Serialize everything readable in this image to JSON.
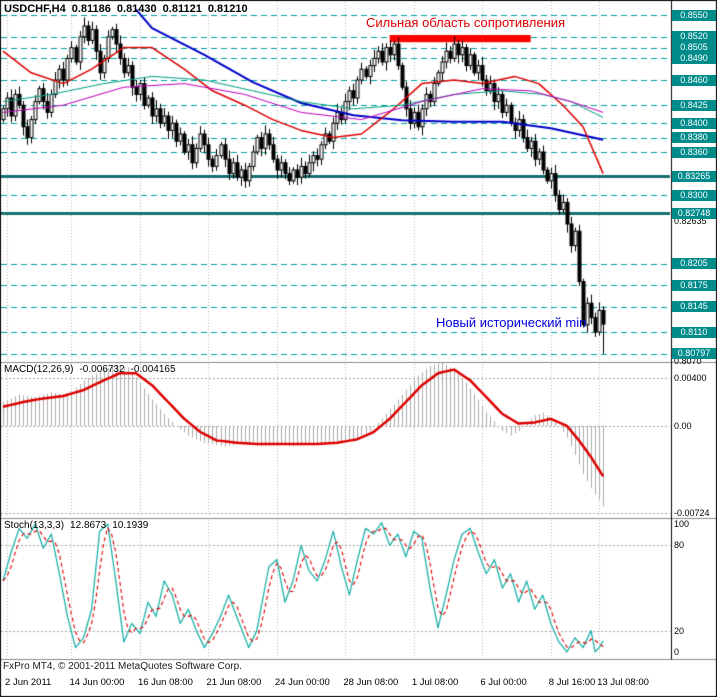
{
  "header": {
    "symbol": "USDCHF,H4",
    "open": "0.81186",
    "high": "0.81430",
    "low": "0.81121",
    "close": "0.81210"
  },
  "annotations": {
    "resistance_text": "Сильная область сопротивления",
    "min_text": "Новый исторический min"
  },
  "footer": {
    "copyright": "FxPro MT4, © 2001-2011 MetaQuotes Software Corp."
  },
  "indicators": {
    "macd": {
      "label": "MACD(12,26,9)",
      "value1": "-0.006732",
      "value2": "-0.004165",
      "scale": [
        "0.00400",
        "0.00",
        "-0.00724"
      ]
    },
    "stoch": {
      "label": "Stoch(13,3,3)",
      "value1": "12.8673",
      "value2": "10.1939",
      "scale": [
        "100",
        "80",
        "20",
        "0"
      ]
    }
  },
  "time_axis": {
    "labels": [
      {
        "bar": 1,
        "label": "2 Jun 2011"
      },
      {
        "bar": 17,
        "label": "14 Jun 00:00"
      },
      {
        "bar": 34,
        "label": "16 Jun 08:00"
      },
      {
        "bar": 51,
        "label": "21 Jun 08:00"
      },
      {
        "bar": 68,
        "label": "24 Jun 00:00"
      },
      {
        "bar": 85,
        "label": "28 Jun 08:00"
      },
      {
        "bar": 102,
        "label": "1 Jul 08:00"
      },
      {
        "bar": 119,
        "label": "6 Jul 00:00"
      },
      {
        "bar": 136,
        "label": "8 Jul 16:00"
      },
      {
        "bar": 148,
        "label": "13 Jul 08:00"
      }
    ]
  },
  "colors": {
    "background": "#FFFFFF",
    "border": "#000000",
    "grid": "#BDBDBD",
    "separator": "#8A8A8A",
    "level_line": "#00A0A0",
    "level_thick": "#176F6F",
    "level_box": "#008B8B",
    "bull": "#FFFFFF",
    "bear": "#000000",
    "candle_outline": "#000000",
    "ma_red": "#DD0000",
    "ma_blue": "#0000C8",
    "ma_teal": "#00A080",
    "ma_magenta": "#C000C0",
    "macd_hist": "#ABABAB",
    "macd_signal": "#DD0000",
    "stoch_main": "#20B2AA",
    "stoch_signal": "#DD0000",
    "resistance_bar": "#FF0000",
    "annotation_red": "#E00000",
    "annotation_blue": "#0000E0",
    "axis_text": "#000000"
  },
  "chart_data": [
    {
      "type": "candlestick",
      "title": "USDCHF H4",
      "y_range": [
        0.807,
        0.856
      ],
      "pip_factor": 0.0001,
      "historic_min": 0.80797,
      "closes_pips": [
        8420,
        8435,
        8410,
        8440,
        8425,
        8395,
        8380,
        8405,
        8430,
        8448,
        8430,
        8415,
        8440,
        8460,
        8475,
        8460,
        8490,
        8505,
        8485,
        8520,
        8535,
        8515,
        8530,
        8500,
        8470,
        8490,
        8520,
        8530,
        8510,
        8490,
        8470,
        8480,
        8450,
        8440,
        8455,
        8425,
        8435,
        8410,
        8420,
        8400,
        8410,
        8390,
        8400,
        8375,
        8385,
        8360,
        8370,
        8345,
        8365,
        8385,
        8370,
        8350,
        8340,
        8355,
        8370,
        8350,
        8330,
        8345,
        8325,
        8335,
        8320,
        8340,
        8360,
        8380,
        8365,
        8385,
        8370,
        8350,
        8335,
        8345,
        8330,
        8320,
        8335,
        8325,
        8340,
        8330,
        8345,
        8355,
        8350,
        8370,
        8385,
        8375,
        8400,
        8415,
        8405,
        8430,
        8445,
        8435,
        8460,
        8475,
        8465,
        8480,
        8490,
        8500,
        8485,
        8505,
        8495,
        8510,
        8480,
        8450,
        8420,
        8400,
        8415,
        8395,
        8420,
        8440,
        8430,
        8455,
        8470,
        8485,
        8500,
        8490,
        8510,
        8495,
        8505,
        8480,
        8495,
        8470,
        8480,
        8460,
        8445,
        8455,
        8430,
        8440,
        8415,
        8425,
        8400,
        8390,
        8405,
        8380,
        8365,
        8375,
        8350,
        8360,
        8335,
        8320,
        8330,
        8300,
        8280,
        8290,
        8260,
        8230,
        8250,
        8180,
        8120,
        8150,
        8130,
        8110,
        8140,
        8121
      ],
      "levels": [
        {
          "label": "0.8550",
          "price": 0.855,
          "style": "dash"
        },
        {
          "label": "0.8520",
          "price": 0.852,
          "style": "dash"
        },
        {
          "label": "0.8505",
          "price": 0.8505,
          "style": "dash"
        },
        {
          "label": "0.8490",
          "price": 0.849,
          "style": "dash"
        },
        {
          "label": "0.8460",
          "price": 0.846,
          "style": "dash"
        },
        {
          "label": "0.8425",
          "price": 0.8425,
          "style": "dash"
        },
        {
          "label": "0.8400",
          "price": 0.84,
          "style": "dash"
        },
        {
          "label": "0.8380",
          "price": 0.838,
          "style": "dash"
        },
        {
          "label": "0.8360",
          "price": 0.836,
          "style": "dash"
        },
        {
          "label": "0.83265",
          "price": 0.83265,
          "style": "solid"
        },
        {
          "label": "0.8300",
          "price": 0.83,
          "style": "dash"
        },
        {
          "label": "0.82748",
          "price": 0.82748,
          "style": "solid"
        },
        {
          "label": "0.8205",
          "price": 0.8205,
          "style": "dash"
        },
        {
          "label": "0.8175",
          "price": 0.8175,
          "style": "dash"
        },
        {
          "label": "0.8145",
          "price": 0.8145,
          "style": "dash"
        },
        {
          "label": "0.8110",
          "price": 0.811,
          "style": "dash"
        },
        {
          "label": "0.80797",
          "price": 0.80797,
          "style": "dash"
        }
      ],
      "plain_ticks": [
        {
          "label": "0.82635",
          "price": 0.82635
        },
        {
          "label": "0.8070",
          "price": 0.807
        }
      ],
      "resistance_zone": {
        "price_top": 0.85225,
        "price_bottom": 0.85125,
        "bar_start": 96,
        "bar_end": 131
      },
      "ma_lines": [
        {
          "name": "ma-blue",
          "color": "#0000C8",
          "width": 2,
          "points": [
            [
              33,
              0.8558
            ],
            [
              37,
              0.8532
            ],
            [
              50,
              0.8495
            ],
            [
              62,
              0.8457
            ],
            [
              74,
              0.8428
            ],
            [
              87,
              0.8411
            ],
            [
              99,
              0.8404
            ],
            [
              112,
              0.8402
            ],
            [
              124,
              0.8402
            ],
            [
              136,
              0.8393
            ],
            [
              149,
              0.8377
            ]
          ]
        },
        {
          "name": "ma-red",
          "color": "#DD0000",
          "width": 1.5,
          "points": [
            [
              0,
              0.85
            ],
            [
              7,
              0.847
            ],
            [
              15,
              0.8455
            ],
            [
              22,
              0.8475
            ],
            [
              30,
              0.8505
            ],
            [
              37,
              0.8505
            ],
            [
              45,
              0.8475
            ],
            [
              52,
              0.8445
            ],
            [
              60,
              0.8425
            ],
            [
              67,
              0.8405
            ],
            [
              74,
              0.839
            ],
            [
              82,
              0.838
            ],
            [
              89,
              0.8385
            ],
            [
              97,
              0.842
            ],
            [
              104,
              0.8455
            ],
            [
              112,
              0.846
            ],
            [
              119,
              0.8455
            ],
            [
              127,
              0.8465
            ],
            [
              133,
              0.8455
            ],
            [
              139,
              0.8425
            ],
            [
              144,
              0.8395
            ],
            [
              149,
              0.833
            ]
          ]
        },
        {
          "name": "ma-teal",
          "color": "#00A080",
          "width": 1,
          "points": [
            [
              0,
              0.843
            ],
            [
              12,
              0.844
            ],
            [
              25,
              0.8455
            ],
            [
              37,
              0.8465
            ],
            [
              50,
              0.846
            ],
            [
              62,
              0.8445
            ],
            [
              74,
              0.843
            ],
            [
              87,
              0.842
            ],
            [
              99,
              0.8425
            ],
            [
              112,
              0.844
            ],
            [
              124,
              0.8445
            ],
            [
              134,
              0.844
            ],
            [
              141,
              0.843
            ],
            [
              149,
              0.8408
            ]
          ]
        },
        {
          "name": "ma-magenta",
          "color": "#C000C0",
          "width": 1,
          "points": [
            [
              0,
              0.8415
            ],
            [
              15,
              0.8425
            ],
            [
              30,
              0.845
            ],
            [
              45,
              0.8455
            ],
            [
              60,
              0.844
            ],
            [
              74,
              0.8415
            ],
            [
              89,
              0.8405
            ],
            [
              104,
              0.843
            ],
            [
              119,
              0.8448
            ],
            [
              131,
              0.8445
            ],
            [
              141,
              0.843
            ],
            [
              149,
              0.8415
            ]
          ]
        }
      ]
    },
    {
      "type": "macd",
      "name": "MACD(12,26,9)",
      "last_main": -0.006732,
      "last_signal": -0.004165,
      "ylim": [
        -0.008,
        0.0056
      ],
      "scale_ticks": [
        0.004,
        0,
        -0.00724
      ],
      "main_keypoints": [
        [
          0,
          0.002
        ],
        [
          4,
          0.0026
        ],
        [
          8,
          0.0024
        ],
        [
          12,
          0.0028
        ],
        [
          16,
          0.0026
        ],
        [
          20,
          0.0038
        ],
        [
          24,
          0.0046
        ],
        [
          28,
          0.0051
        ],
        [
          31,
          0.0049
        ],
        [
          34,
          0.0036
        ],
        [
          37,
          0.0022
        ],
        [
          40,
          0.001
        ],
        [
          43,
          0.0
        ],
        [
          46,
          -0.0008
        ],
        [
          50,
          -0.0014
        ],
        [
          55,
          -0.0017
        ],
        [
          60,
          -0.0014
        ],
        [
          64,
          -0.0017
        ],
        [
          68,
          -0.0015
        ],
        [
          72,
          -0.0017
        ],
        [
          76,
          -0.0014
        ],
        [
          80,
          -0.0016
        ],
        [
          84,
          -0.0013
        ],
        [
          88,
          -0.001
        ],
        [
          91,
          -0.0004
        ],
        [
          94,
          0.0006
        ],
        [
          97,
          0.0018
        ],
        [
          100,
          0.003
        ],
        [
          103,
          0.0042
        ],
        [
          106,
          0.005
        ],
        [
          109,
          0.0053
        ],
        [
          112,
          0.0047
        ],
        [
          115,
          0.0036
        ],
        [
          118,
          0.0022
        ],
        [
          120,
          0.0012
        ],
        [
          122,
          0.0004
        ],
        [
          124,
          -0.0004
        ],
        [
          126,
          -0.0008
        ],
        [
          128,
          -0.0004
        ],
        [
          130,
          0.0003
        ],
        [
          132,
          0.0009
        ],
        [
          134,
          0.0011
        ],
        [
          136,
          0.0007
        ],
        [
          138,
          0.0
        ],
        [
          140,
          -0.001
        ],
        [
          142,
          -0.0024
        ],
        [
          144,
          -0.004
        ],
        [
          146,
          -0.0052
        ],
        [
          148,
          -0.0062
        ],
        [
          149,
          -0.0067
        ]
      ],
      "signal_keypoints": [
        [
          0,
          0.0016
        ],
        [
          5,
          0.002
        ],
        [
          10,
          0.0023
        ],
        [
          15,
          0.0025
        ],
        [
          20,
          0.003
        ],
        [
          25,
          0.0038
        ],
        [
          29,
          0.0044
        ],
        [
          33,
          0.0044
        ],
        [
          37,
          0.0034
        ],
        [
          41,
          0.002
        ],
        [
          45,
          0.0006
        ],
        [
          49,
          -0.0005
        ],
        [
          53,
          -0.0012
        ],
        [
          58,
          -0.0014
        ],
        [
          63,
          -0.0015
        ],
        [
          68,
          -0.0015
        ],
        [
          73,
          -0.0015
        ],
        [
          78,
          -0.0015
        ],
        [
          83,
          -0.0014
        ],
        [
          88,
          -0.0011
        ],
        [
          92,
          -0.0005
        ],
        [
          96,
          0.0006
        ],
        [
          100,
          0.002
        ],
        [
          104,
          0.0034
        ],
        [
          108,
          0.0044
        ],
        [
          112,
          0.0047
        ],
        [
          116,
          0.0038
        ],
        [
          120,
          0.0024
        ],
        [
          124,
          0.001
        ],
        [
          128,
          0.0002
        ],
        [
          132,
          0.0003
        ],
        [
          136,
          0.0006
        ],
        [
          140,
          0.0
        ],
        [
          143,
          -0.0012
        ],
        [
          146,
          -0.0026
        ],
        [
          149,
          -0.0042
        ]
      ]
    },
    {
      "type": "stochastic",
      "name": "Stoch(13,3,3)",
      "last_k": 12.8673,
      "last_d": 10.1939,
      "ylim": [
        0,
        100
      ],
      "levels": [
        80,
        20
      ],
      "k_keypoints": [
        [
          0,
          55
        ],
        [
          2,
          75
        ],
        [
          4,
          92
        ],
        [
          6,
          85
        ],
        [
          8,
          95
        ],
        [
          10,
          78
        ],
        [
          12,
          88
        ],
        [
          14,
          60
        ],
        [
          16,
          30
        ],
        [
          18,
          8
        ],
        [
          20,
          15
        ],
        [
          22,
          35
        ],
        [
          24,
          90
        ],
        [
          26,
          95
        ],
        [
          28,
          55
        ],
        [
          30,
          12
        ],
        [
          32,
          25
        ],
        [
          34,
          18
        ],
        [
          36,
          40
        ],
        [
          38,
          30
        ],
        [
          40,
          55
        ],
        [
          42,
          45
        ],
        [
          44,
          25
        ],
        [
          46,
          35
        ],
        [
          48,
          20
        ],
        [
          50,
          8
        ],
        [
          52,
          18
        ],
        [
          54,
          30
        ],
        [
          56,
          45
        ],
        [
          58,
          30
        ],
        [
          61,
          8
        ],
        [
          63,
          20
        ],
        [
          66,
          65
        ],
        [
          68,
          70
        ],
        [
          70,
          40
        ],
        [
          72,
          55
        ],
        [
          74,
          80
        ],
        [
          76,
          62
        ],
        [
          78,
          55
        ],
        [
          80,
          70
        ],
        [
          82,
          90
        ],
        [
          84,
          65
        ],
        [
          86,
          45
        ],
        [
          88,
          70
        ],
        [
          90,
          92
        ],
        [
          92,
          88
        ],
        [
          94,
          96
        ],
        [
          96,
          80
        ],
        [
          98,
          88
        ],
        [
          100,
          72
        ],
        [
          102,
          90
        ],
        [
          104,
          85
        ],
        [
          106,
          50
        ],
        [
          108,
          22
        ],
        [
          110,
          45
        ],
        [
          112,
          70
        ],
        [
          114,
          88
        ],
        [
          116,
          92
        ],
        [
          118,
          75
        ],
        [
          120,
          60
        ],
        [
          122,
          70
        ],
        [
          124,
          50
        ],
        [
          126,
          60
        ],
        [
          128,
          40
        ],
        [
          130,
          55
        ],
        [
          132,
          35
        ],
        [
          134,
          45
        ],
        [
          136,
          25
        ],
        [
          138,
          12
        ],
        [
          140,
          5
        ],
        [
          142,
          15
        ],
        [
          144,
          8
        ],
        [
          146,
          20
        ],
        [
          147,
          5
        ],
        [
          148,
          8
        ],
        [
          149,
          12.87
        ]
      ]
    }
  ]
}
